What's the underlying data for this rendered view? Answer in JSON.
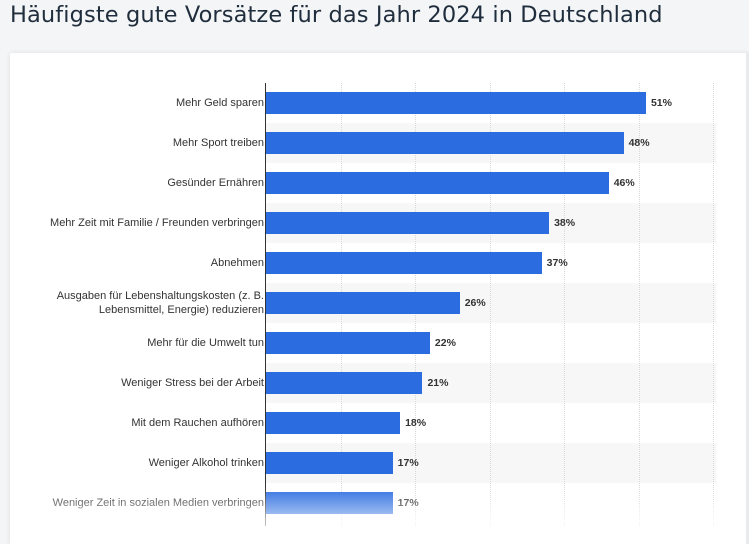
{
  "title": "Häufigste gute Vorsätze für das Jahr 2024 in Deutschland",
  "colors": {
    "bar": "#2b6de0",
    "title": "#1f2d3d",
    "text": "#333333"
  },
  "chart_data": {
    "type": "bar",
    "orientation": "horizontal",
    "title": "Häufigste gute Vorsätze für das Jahr 2024 in Deutschland",
    "xlabel": "",
    "ylabel": "",
    "xlim": [
      0,
      60
    ],
    "grid": true,
    "categories": [
      "Mehr Geld sparen",
      "Mehr Sport treiben",
      "Gesünder Ernähren",
      "Mehr Zeit mit Familie / Freunden verbringen",
      "Abnehmen",
      "Ausgaben für Lebenshaltungskosten (z. B. Lebensmittel, Energie) reduzieren",
      "Mehr für die Umwelt tun",
      "Weniger Stress bei der Arbeit",
      "Mit dem Rauchen aufhören",
      "Weniger Alkohol trinken",
      "Weniger Zeit in sozialen Medien verbringen"
    ],
    "values": [
      51,
      48,
      46,
      38,
      37,
      26,
      22,
      21,
      18,
      17,
      17
    ],
    "value_labels": [
      "51%",
      "48%",
      "46%",
      "38%",
      "37%",
      "26%",
      "22%",
      "21%",
      "18%",
      "17%",
      "17%"
    ]
  }
}
